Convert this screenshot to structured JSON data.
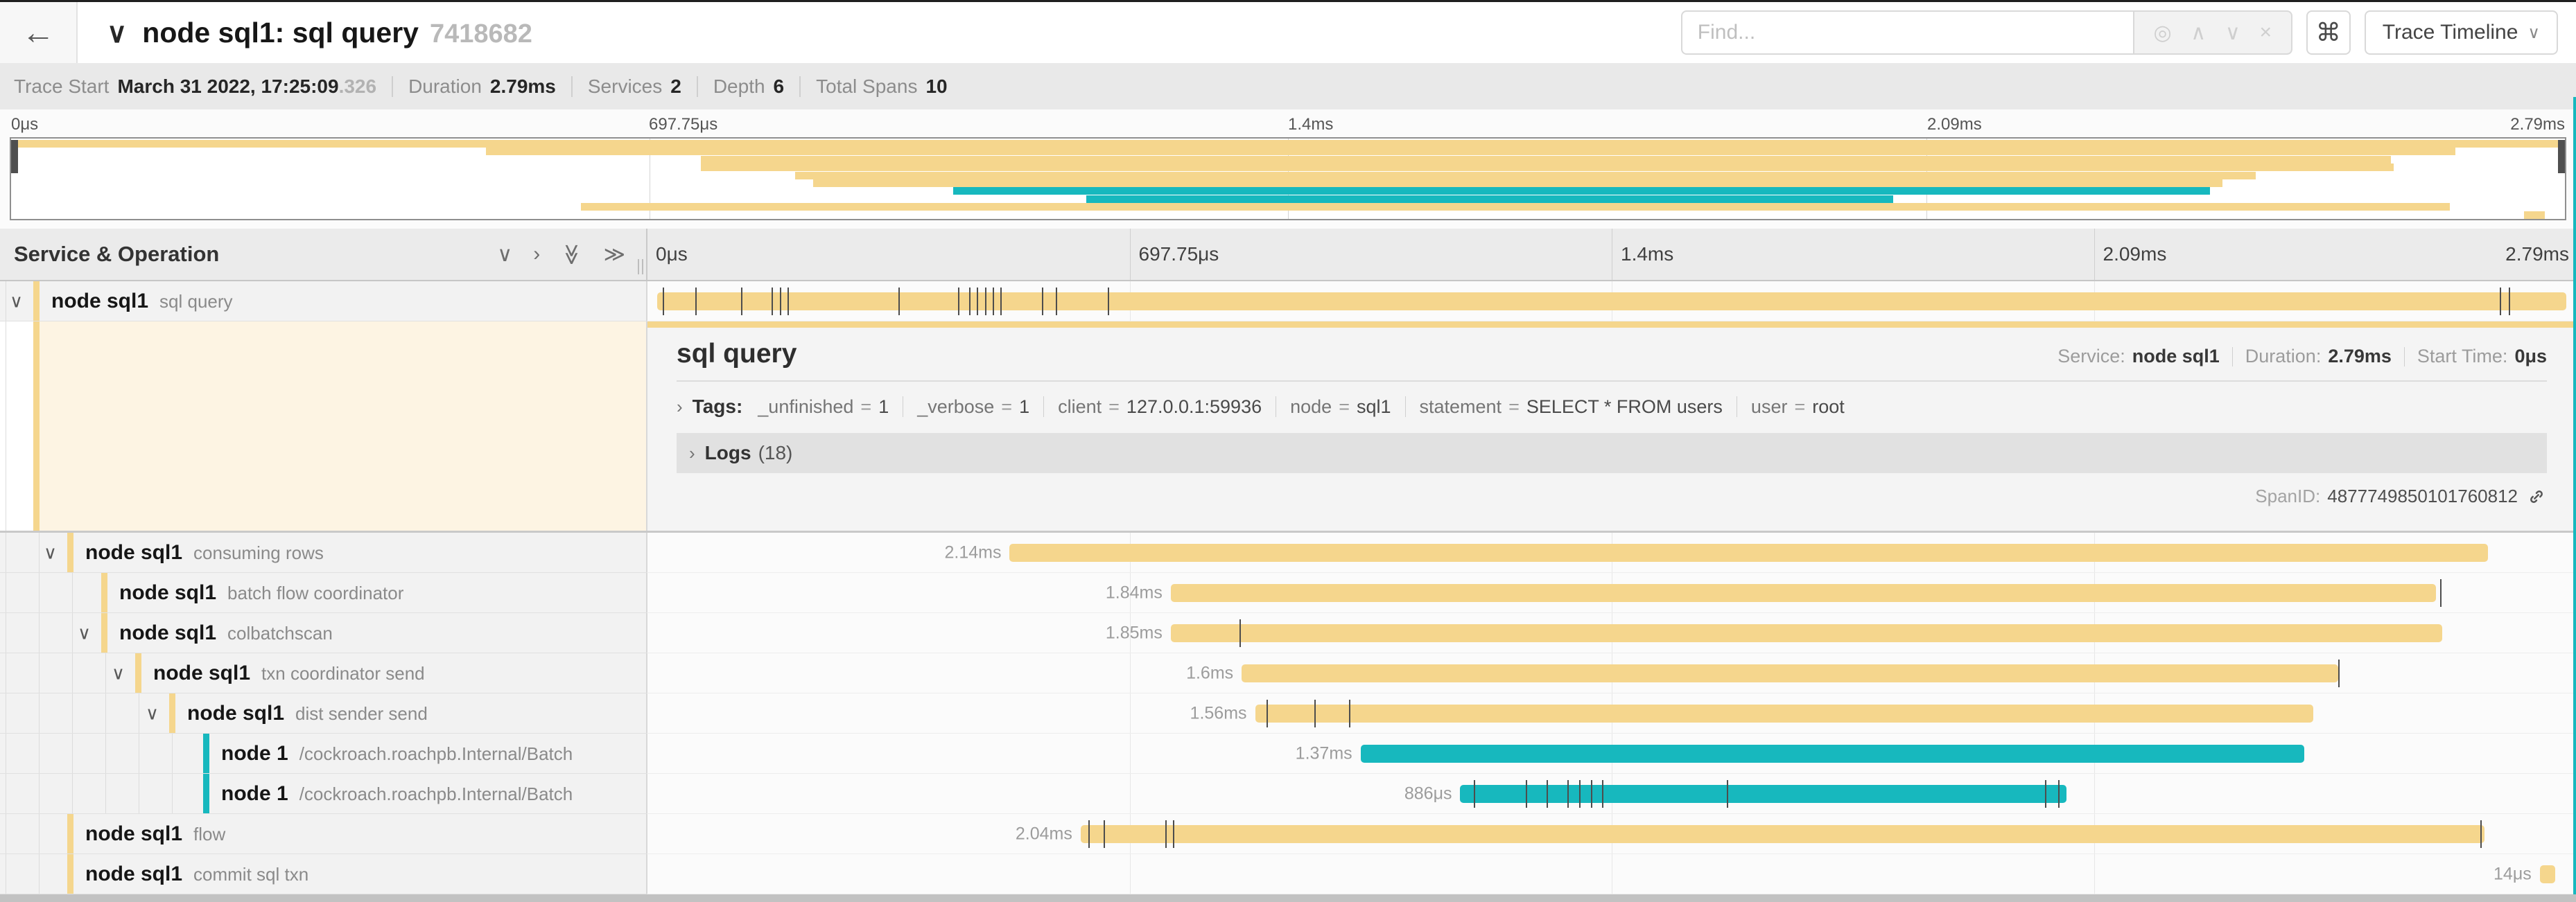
{
  "header": {
    "back": "←",
    "title_chevron": "∨",
    "trace_name": "node sql1: sql query",
    "trace_id_short": "7418682",
    "find_placeholder": "Find...",
    "shortcut_button": "⌘",
    "view_button": "Trace Timeline"
  },
  "trace_info": {
    "items": [
      {
        "label": "Trace Start",
        "value": "March 31 2022, 17:25:09",
        "suffix": ".326"
      },
      {
        "label": "Duration",
        "value": "2.79ms"
      },
      {
        "label": "Services",
        "value": "2"
      },
      {
        "label": "Depth",
        "value": "6"
      },
      {
        "label": "Total Spans",
        "value": "10"
      }
    ]
  },
  "minimap": {
    "axis_ticks": [
      "0μs",
      "697.75μs",
      "1.4ms",
      "2.09ms",
      "2.79ms"
    ],
    "bars": [
      {
        "start": 0.0,
        "end": 1.0,
        "color": "tan"
      },
      {
        "start": 0.186,
        "end": 0.957,
        "color": "tan"
      },
      {
        "start": 0.27,
        "end": 0.932,
        "color": "tan"
      },
      {
        "start": 0.27,
        "end": 0.933,
        "color": "tan"
      },
      {
        "start": 0.307,
        "end": 0.879,
        "color": "tan"
      },
      {
        "start": 0.314,
        "end": 0.866,
        "color": "tan"
      },
      {
        "start": 0.369,
        "end": 0.861,
        "color": "teal"
      },
      {
        "start": 0.421,
        "end": 0.737,
        "color": "teal"
      },
      {
        "start": 0.223,
        "end": 0.955,
        "color": "tan"
      },
      {
        "start": 0.984,
        "end": 0.992,
        "color": "tan"
      }
    ]
  },
  "timeline_header": {
    "title": "Service & Operation",
    "ticks": [
      "0μs",
      "697.75μs",
      "1.4ms",
      "2.09ms",
      "2.79ms"
    ]
  },
  "spans": [
    {
      "service": "node sql1",
      "operation": "sql query",
      "depth": 0,
      "expandable": true,
      "color": "tan",
      "duration_label": "",
      "bar": {
        "start": 0.002,
        "end": 0.998
      },
      "ticks": [
        0.005,
        0.022,
        0.046,
        0.062,
        0.066,
        0.07,
        0.128,
        0.159,
        0.165,
        0.169,
        0.173,
        0.177,
        0.181,
        0.203,
        0.21,
        0.237,
        0.963,
        0.968
      ]
    },
    {
      "service": "node sql1",
      "operation": "consuming rows",
      "depth": 1,
      "expandable": true,
      "color": "tan",
      "duration_label": "2.14ms",
      "bar": {
        "start": 0.186,
        "end": 0.957
      },
      "ticks": []
    },
    {
      "service": "node sql1",
      "operation": "batch flow coordinator",
      "depth": 2,
      "expandable": false,
      "color": "tan",
      "duration_label": "1.84ms",
      "bar": {
        "start": 0.27,
        "end": 0.93
      },
      "ticks": [
        0.932
      ]
    },
    {
      "service": "node sql1",
      "operation": "colbatchscan",
      "depth": 2,
      "expandable": true,
      "color": "tan",
      "duration_label": "1.85ms",
      "bar": {
        "start": 0.27,
        "end": 0.933
      },
      "ticks": [
        0.306
      ]
    },
    {
      "service": "node sql1",
      "operation": "txn coordinator send",
      "depth": 3,
      "expandable": true,
      "color": "tan",
      "duration_label": "1.6ms",
      "bar": {
        "start": 0.307,
        "end": 0.879
      },
      "ticks": [
        0.879
      ]
    },
    {
      "service": "node sql1",
      "operation": "dist sender send",
      "depth": 4,
      "expandable": true,
      "color": "tan",
      "duration_label": "1.56ms",
      "bar": {
        "start": 0.314,
        "end": 0.866
      },
      "ticks": [
        0.32,
        0.345,
        0.363
      ]
    },
    {
      "service": "node 1",
      "operation": "/cockroach.roachpb.Internal/Batch",
      "depth": 5,
      "expandable": false,
      "color": "teal",
      "duration_label": "1.37ms",
      "bar": {
        "start": 0.369,
        "end": 0.861
      },
      "ticks": []
    },
    {
      "service": "node 1",
      "operation": "/cockroach.roachpb.Internal/Batch",
      "depth": 5,
      "expandable": false,
      "color": "teal",
      "duration_label": "886μs",
      "bar": {
        "start": 0.421,
        "end": 0.737
      },
      "ticks": [
        0.428,
        0.455,
        0.466,
        0.477,
        0.483,
        0.489,
        0.495,
        0.56,
        0.726,
        0.733
      ]
    },
    {
      "service": "node sql1",
      "operation": "flow",
      "depth": 1,
      "expandable": false,
      "color": "tan",
      "duration_label": "2.04ms",
      "bar": {
        "start": 0.223,
        "end": 0.955
      },
      "ticks": [
        0.227,
        0.235,
        0.267,
        0.271,
        0.953
      ]
    },
    {
      "service": "node sql1",
      "operation": "commit sql txn",
      "depth": 1,
      "expandable": false,
      "color": "tan",
      "duration_label": "14μs",
      "bar": {
        "start": 0.984,
        "end": 0.992
      },
      "ticks": []
    }
  ],
  "detail": {
    "title": "sql query",
    "service_label": "Service:",
    "service": "node sql1",
    "duration_label": "Duration:",
    "duration": "2.79ms",
    "start_label": "Start Time:",
    "start": "0μs",
    "tags_label": "Tags:",
    "tags": [
      {
        "key": "_unfinished",
        "value": "1"
      },
      {
        "key": "_verbose",
        "value": "1"
      },
      {
        "key": "client",
        "value": "127.0.0.1:59936"
      },
      {
        "key": "node",
        "value": "sql1"
      },
      {
        "key": "statement",
        "value": "SELECT * FROM users"
      },
      {
        "key": "user",
        "value": "root"
      }
    ],
    "logs_label": "Logs",
    "logs_count": "(18)",
    "span_id_label": "SpanID:",
    "span_id": "4877749850101760812"
  },
  "colors": {
    "tan": "#F5D68D",
    "teal": "#17B8BE",
    "cream": "#FDF4E3",
    "tick": "#4d4d4d"
  }
}
